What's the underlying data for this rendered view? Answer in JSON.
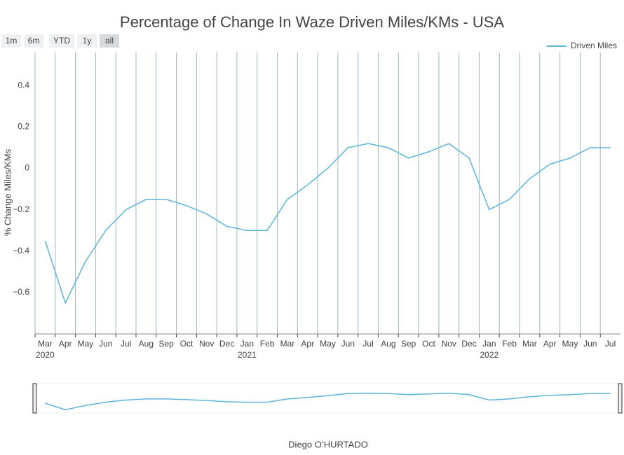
{
  "chart_data": {
    "type": "line",
    "title": "Percentage of Change In Waze Driven Miles/KMs - USA",
    "y_label": "% Change Miles/KMs",
    "footer": "Diego O’HURTADO",
    "buttons": [
      "1m",
      "6m",
      "YTD",
      "1y",
      "all"
    ],
    "x": [
      "2020-03",
      "2020-04",
      "2020-05",
      "2020-06",
      "2020-07",
      "2020-08",
      "2020-09",
      "2020-10",
      "2020-11",
      "2020-12",
      "2021-01",
      "2021-02",
      "2021-03",
      "2021-04",
      "2021-05",
      "2021-06",
      "2021-07",
      "2021-08",
      "2021-09",
      "2021-10",
      "2021-11",
      "2021-12",
      "2022-01",
      "2022-02",
      "2022-03",
      "2022-04",
      "2022-05",
      "2022-06",
      "2022-07"
    ],
    "series": [
      {
        "name": "Driven Miles",
        "color": "#5ab4dc",
        "values": [
          -0.35,
          -0.65,
          -0.45,
          -0.3,
          -0.2,
          -0.15,
          -0.15,
          -0.18,
          -0.22,
          -0.28,
          -0.3,
          -0.3,
          -0.15,
          -0.08,
          0,
          0.1,
          0.12,
          0.1,
          0.05,
          0.08,
          0.12,
          0.05,
          -0.2,
          -0.15,
          -0.05,
          0.02,
          0.05,
          0.1,
          0.1
        ]
      }
    ],
    "xlim": [
      "2020-03",
      "2022-08"
    ],
    "xticks": [
      {
        "value": "2020-03",
        "label": "Mar"
      },
      {
        "value": "2020-04",
        "label": "Apr"
      },
      {
        "value": "2020-05",
        "label": "May"
      },
      {
        "value": "2020-06",
        "label": "Jun"
      },
      {
        "value": "2020-07",
        "label": "Jul"
      },
      {
        "value": "2020-08",
        "label": "Aug"
      },
      {
        "value": "2020-09",
        "label": "Sep"
      },
      {
        "value": "2020-10",
        "label": "Oct"
      },
      {
        "value": "2020-11",
        "label": "Nov"
      },
      {
        "value": "2020-12",
        "label": "Dec"
      },
      {
        "value": "2021-01",
        "label": "Jan"
      },
      {
        "value": "2021-02",
        "label": "Feb"
      },
      {
        "value": "2021-03",
        "label": "Mar"
      },
      {
        "value": "2021-04",
        "label": "Apr"
      },
      {
        "value": "2021-05",
        "label": "May"
      },
      {
        "value": "2021-06",
        "label": "Jun"
      },
      {
        "value": "2021-07",
        "label": "Jul"
      },
      {
        "value": "2021-08",
        "label": "Aug"
      },
      {
        "value": "2021-09",
        "label": "Sep"
      },
      {
        "value": "2021-10",
        "label": "Oct"
      },
      {
        "value": "2021-11",
        "label": "Nov"
      },
      {
        "value": "2021-12",
        "label": "Dec"
      },
      {
        "value": "2022-01",
        "label": "Jan"
      },
      {
        "value": "2022-02",
        "label": "Feb"
      },
      {
        "value": "2022-03",
        "label": "Mar"
      },
      {
        "value": "2022-04",
        "label": "Apr"
      },
      {
        "value": "2022-05",
        "label": "May"
      },
      {
        "value": "2022-06",
        "label": "Jun"
      },
      {
        "value": "2022-07",
        "label": "Jul"
      }
    ],
    "xtick_years": [
      {
        "value": "2020-03",
        "label": "2020"
      },
      {
        "value": "2021-01",
        "label": "2021"
      },
      {
        "value": "2022-01",
        "label": "2022"
      }
    ],
    "ylim": [
      -0.8,
      0.56
    ],
    "yticks": [
      {
        "value": -0.6,
        "label": "−0.6"
      },
      {
        "value": -0.4,
        "label": "−0.4"
      },
      {
        "value": -0.2,
        "label": "−0.2"
      },
      0,
      0.2,
      0.4
    ],
    "grid": "x",
    "legend": "top-right"
  }
}
